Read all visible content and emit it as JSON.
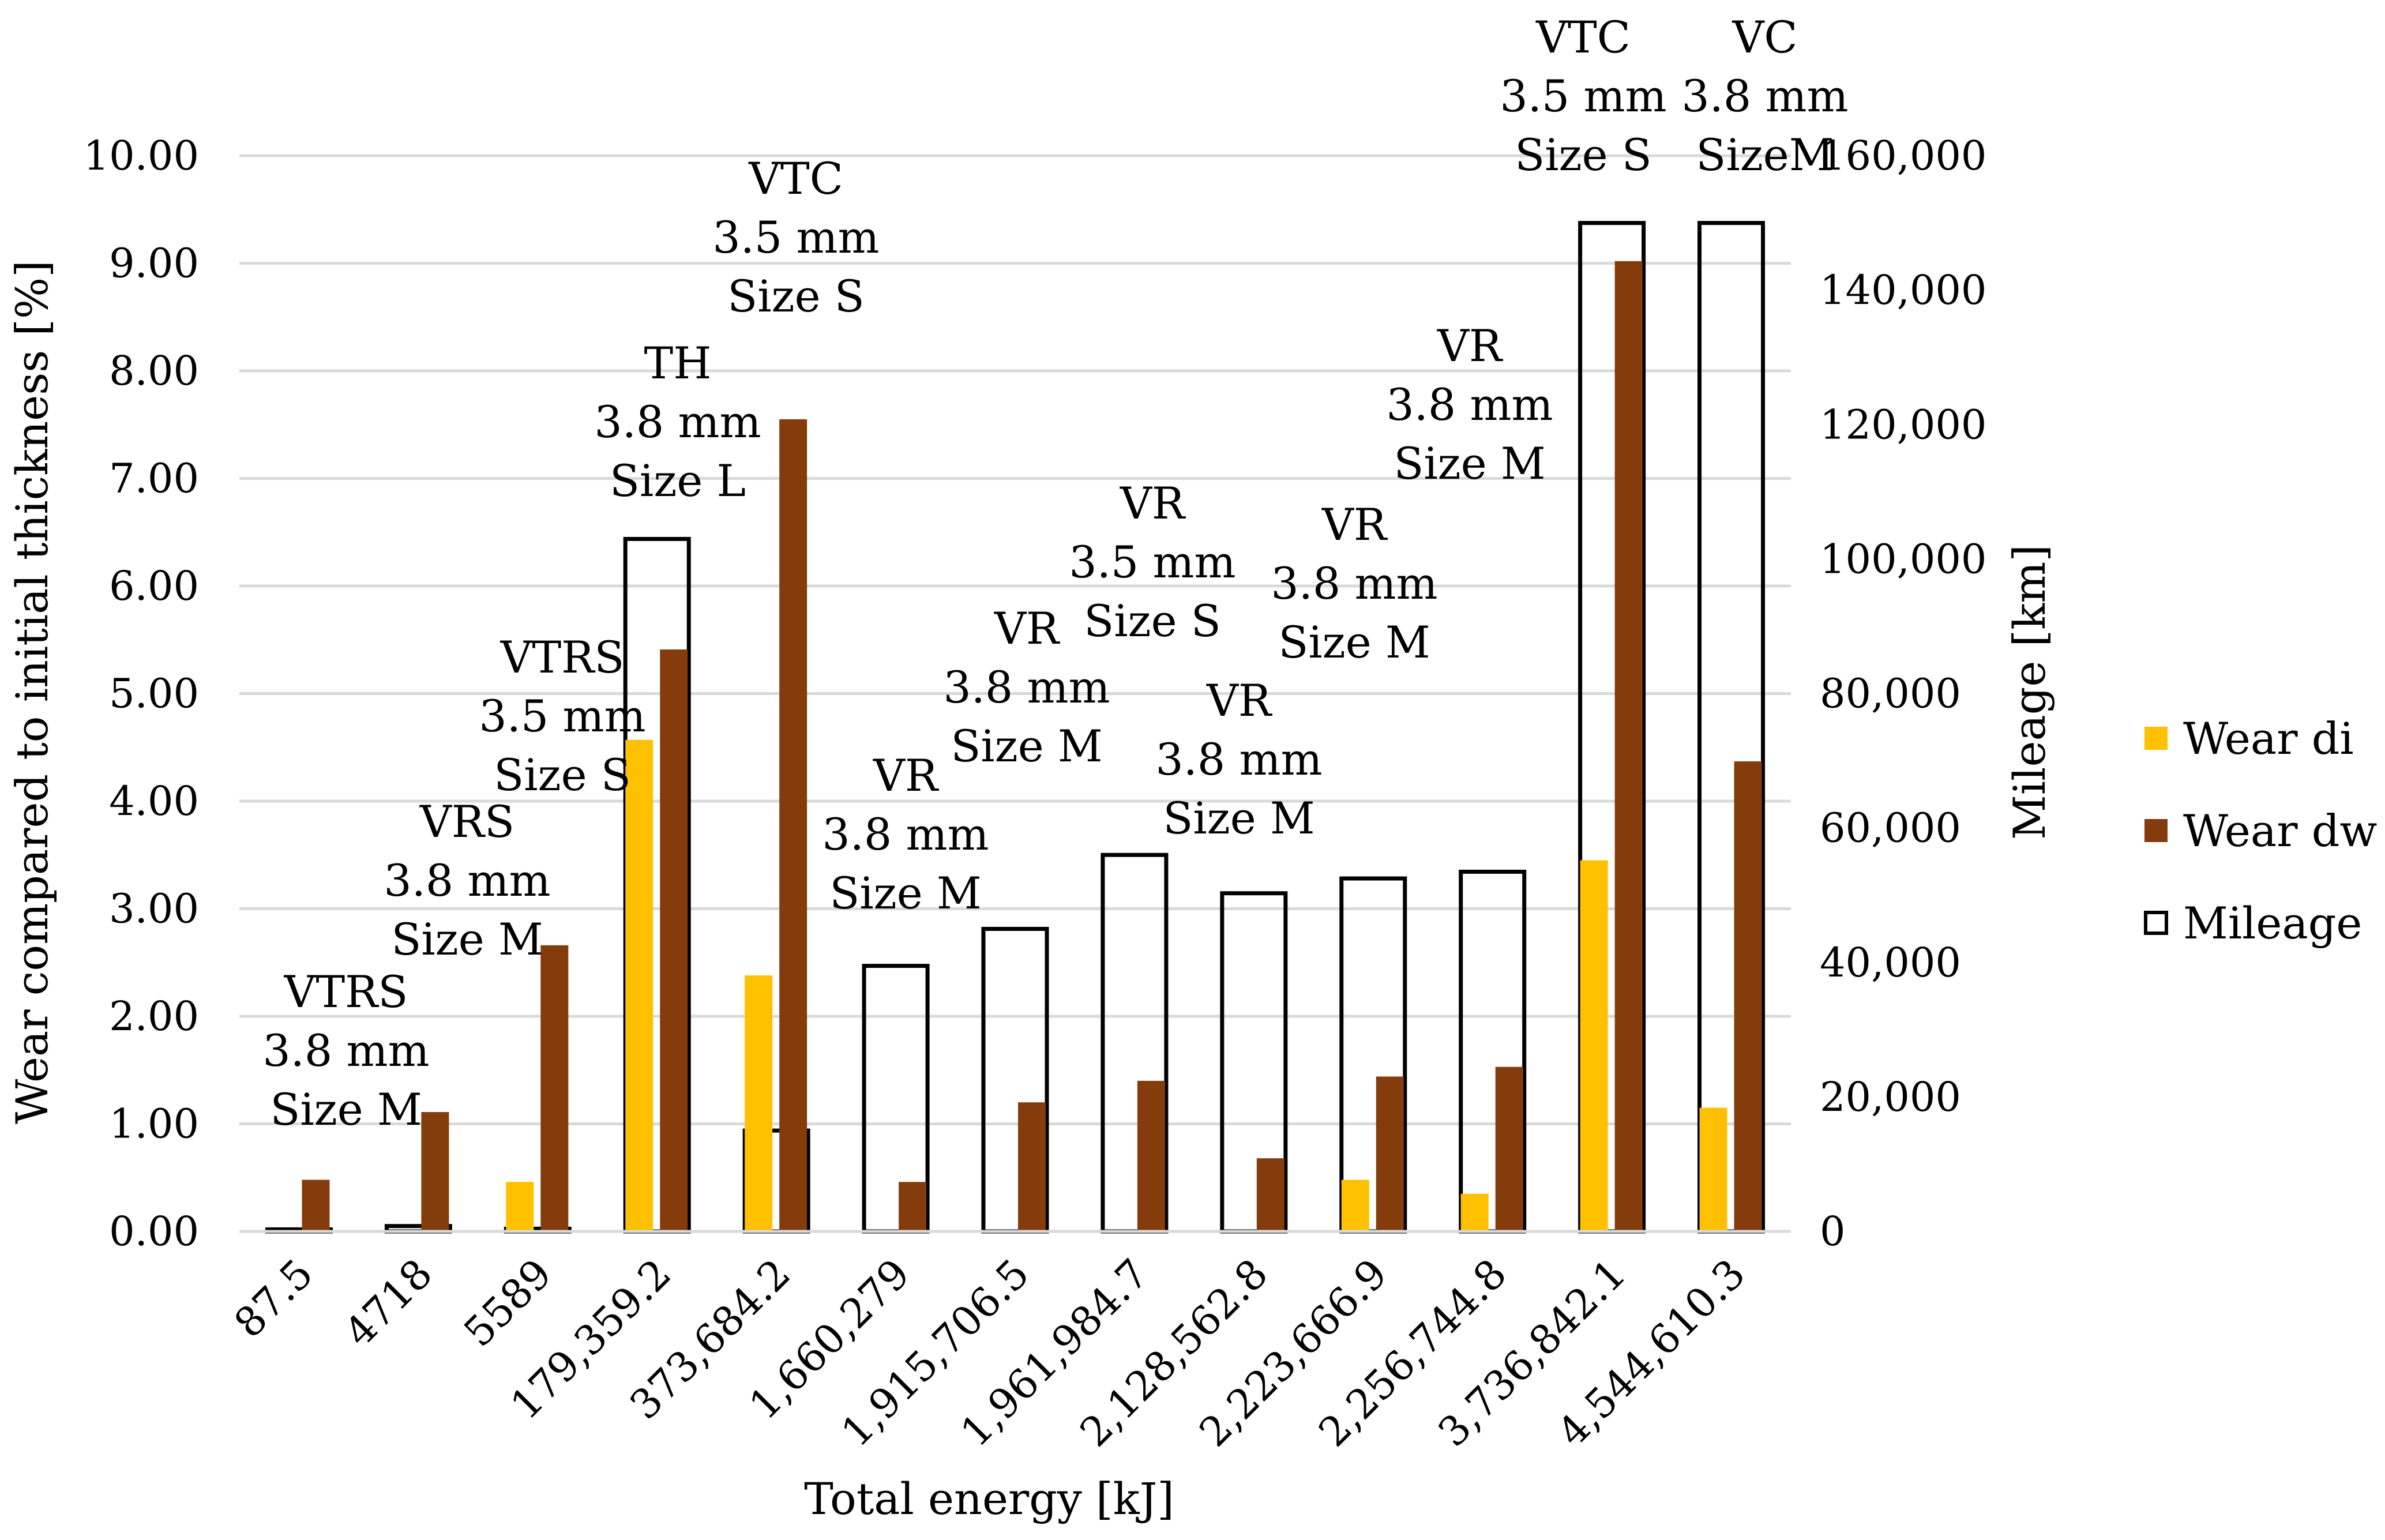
{
  "chart_data": {
    "type": "bar",
    "title": "",
    "xlabel": "Total energy [kJ]",
    "ylabel": "Wear compared to initial thickness [%]",
    "y2label": "Mileage [km]",
    "ylim": [
      0,
      10
    ],
    "y2lim": [
      0,
      160000
    ],
    "y_ticks": [
      "0.00",
      "1.00",
      "2.00",
      "3.00",
      "4.00",
      "5.00",
      "6.00",
      "7.00",
      "8.00",
      "9.00",
      "10.00"
    ],
    "y2_ticks": [
      "0",
      "20,000",
      "40,000",
      "60,000",
      "80,000",
      "100,000",
      "120,000",
      "140,000",
      "160,000"
    ],
    "grid": true,
    "legend_position": "right",
    "categories": [
      "87.5",
      "4718",
      "5589",
      "179,359.2",
      "373,684.2",
      "1,660,279",
      "1,915,706.5",
      "1,961,984.7",
      "2,128,562.8",
      "2,223,666.9",
      "2,256,744.8",
      "3,736,842.1",
      "4,544,610.3"
    ],
    "series": [
      {
        "name": "Wear di",
        "axis": "left",
        "color": "#ffc000",
        "style": "filled",
        "values": [
          0,
          0,
          0.46,
          4.57,
          2.38,
          0,
          0,
          0,
          0,
          0.48,
          0.35,
          3.45,
          1.15
        ]
      },
      {
        "name": "Wear dw",
        "axis": "left",
        "color": "#843c0c",
        "style": "filled",
        "values": [
          0.48,
          1.11,
          2.66,
          5.41,
          7.55,
          0.46,
          1.2,
          1.4,
          0.68,
          1.44,
          1.53,
          9.02,
          4.37
        ]
      },
      {
        "name": "Mileage",
        "axis": "right",
        "color": "#000000",
        "style": "outline",
        "values": [
          300,
          800,
          400,
          103000,
          15000,
          39500,
          45000,
          56000,
          50300,
          52500,
          53500,
          150000,
          150000
        ]
      }
    ],
    "annotations": [
      {
        "category": "87.5",
        "lines": [
          "VTRS",
          "3.8 mm",
          "Size M"
        ]
      },
      {
        "category": "4718",
        "lines": [
          "VRS",
          "3.8 mm",
          "Size M"
        ]
      },
      {
        "category": "5589",
        "lines": [
          "VTRS",
          "3.5 mm",
          "Size S"
        ]
      },
      {
        "category": "179,359.2",
        "lines": [
          "TH",
          "3.8 mm",
          "Size L"
        ]
      },
      {
        "category": "373,684.2",
        "lines": [
          "VTC",
          "3.5 mm",
          "Size S"
        ]
      },
      {
        "category": "1,660,279",
        "lines": [
          "VR",
          "3.8 mm",
          "Size M"
        ]
      },
      {
        "category": "1,915,706.5",
        "lines": [
          "VR",
          "3.8 mm",
          "Size M"
        ]
      },
      {
        "category": "1,961,984.7",
        "lines": [
          "VR",
          "3.5 mm",
          "Size S"
        ]
      },
      {
        "category": "2,128,562.8",
        "lines": [
          "VR",
          "3.8 mm",
          "Size M"
        ]
      },
      {
        "category": "2,223,666.9",
        "lines": [
          "VR",
          "3.8 mm",
          "Size M"
        ]
      },
      {
        "category": "2,256,744.8",
        "lines": [
          "VR",
          "3.8 mm",
          "Size M"
        ]
      },
      {
        "category": "3,736,842.1",
        "lines": [
          "VTC",
          "3.5 mm",
          "Size S"
        ]
      },
      {
        "category": "4,544,610.3",
        "lines": [
          "VC",
          "3.8 mm",
          "SizeM"
        ]
      }
    ]
  }
}
